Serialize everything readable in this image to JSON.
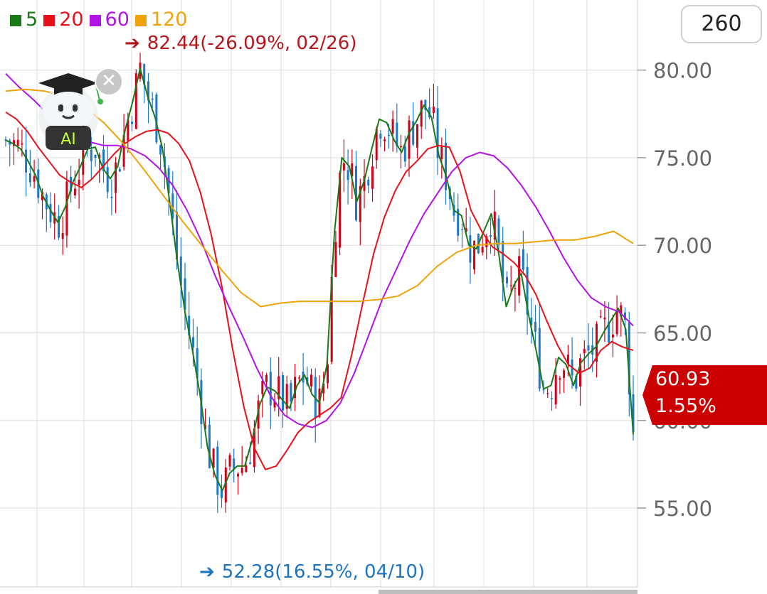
{
  "period_button": "260",
  "legend": [
    {
      "label": "5",
      "color": "#1a7a1a"
    },
    {
      "label": "20",
      "color": "#e8111b"
    },
    {
      "label": "60",
      "color": "#b112e6"
    },
    {
      "label": "120",
      "color": "#f0a30a"
    }
  ],
  "high_note": "82.44(-26.09%, 02/26)",
  "low_note": "52.28(16.55%, 04/10)",
  "current_price": "60.93",
  "current_change": "1.55%",
  "ai_badge": {
    "label": "AI",
    "icon": "graduate-robot-icon",
    "close_icon": "close-icon"
  },
  "colors": {
    "up": "#d0021b",
    "down": "#1e78c8",
    "grid": "#dddddd",
    "axis_text": "#666666",
    "price_tag": "#cc0000"
  },
  "chart_data": {
    "type": "line",
    "ylim": [
      50.5,
      84.0
    ],
    "yticks": [
      "80.00",
      "75.00",
      "70.00",
      "65.00",
      "60.00",
      "55.00"
    ],
    "grid": true,
    "candle_count": 155,
    "series": [
      {
        "name": "5",
        "color": "#1a7a1a",
        "values": [
          76,
          75.8,
          75.5,
          74.8,
          74,
          72.8,
          72,
          71.3,
          72.2,
          73.6,
          74.5,
          75.5,
          75.6,
          74.4,
          73.8,
          74.5,
          76.6,
          78.2,
          80.1,
          78.5,
          77.3,
          75.5,
          72.3,
          69,
          66.2,
          64,
          61.5,
          58.5,
          56.9,
          56,
          57,
          57.4,
          57.4,
          58.9,
          60.9,
          61.9,
          61.7,
          61.2,
          60.7,
          62,
          62.6,
          61.5,
          61,
          63.2,
          70.7,
          75,
          74.5,
          72.5,
          73.7,
          75.5,
          77.2,
          77,
          76,
          75.3,
          76.4,
          77.1,
          78,
          77.3,
          75.1,
          73.9,
          72,
          71.7,
          70,
          69.8,
          70.8,
          71.8,
          69.5,
          66.5,
          67.7,
          68.4,
          66,
          64,
          61.8,
          62,
          63.6,
          63.2,
          62,
          63.3,
          63.8,
          64.2,
          65,
          65.7,
          66.4,
          65.2,
          59.2
        ]
      },
      {
        "name": "20",
        "color": "#e8111b",
        "values": [
          77.6,
          77.2,
          76.5,
          75.6,
          74.8,
          74,
          73.6,
          73.3,
          73.8,
          74.5,
          75.2,
          75.8,
          76.2,
          76.5,
          76.6,
          76.4,
          75.8,
          74.8,
          73,
          70.6,
          67.6,
          64,
          60.8,
          58.4,
          57.2,
          57.4,
          58.3,
          59.3,
          59.9,
          60.3,
          60.7,
          61.3,
          63.8,
          66.7,
          69.5,
          71.6,
          73.1,
          74.2,
          74.8,
          75.5,
          75.7,
          75.6,
          74.2,
          72,
          70.8,
          69.9,
          69.5,
          69,
          68.3,
          67.2,
          65.7,
          64.3,
          63.2,
          62.7,
          63,
          64,
          64.5,
          64.2,
          64
        ]
      },
      {
        "name": "60",
        "color": "#b112e6",
        "values": [
          79.8,
          79,
          78.3,
          77.5,
          76.7,
          76.2,
          75.9,
          75.7,
          75.7,
          75.5,
          75.1,
          74.4,
          73.4,
          72,
          70.3,
          68.3,
          66.5,
          64.8,
          63,
          61.4,
          60.3,
          59.8,
          59.6,
          60,
          61,
          62.7,
          64.8,
          66.9,
          68.6,
          70.3,
          71.8,
          73,
          74.2,
          75,
          75.3,
          75.1,
          74.4,
          73.4,
          72.2,
          70.8,
          69.3,
          68,
          67,
          66.5,
          66.2,
          65.4
        ]
      },
      {
        "name": "120",
        "color": "#f0a30a",
        "values": [
          78.8,
          78.9,
          78.8,
          78.5,
          77.9,
          77,
          75.8,
          74.4,
          72.9,
          71.4,
          70,
          68.6,
          67.3,
          66.5,
          66.7,
          66.8,
          66.8,
          66.8,
          66.8,
          66.9,
          67.1,
          67.7,
          68.8,
          69.6,
          70,
          70.1,
          70.1,
          70.2,
          70.3,
          70.3,
          70.5,
          70.8,
          70.1
        ]
      }
    ]
  }
}
